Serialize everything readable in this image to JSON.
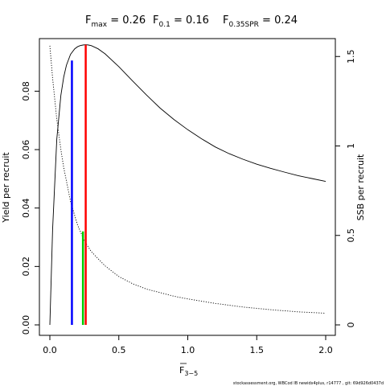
{
  "chart_data": {
    "type": "line",
    "title": {
      "parts": [
        {
          "main": "F",
          "sub": "max",
          "value": " = 0.26"
        },
        {
          "main": "F",
          "sub": "0.1",
          "value": " = 0.16"
        },
        {
          "main": "F",
          "sub": "0.35SPR",
          "value": " = 0.24"
        }
      ]
    },
    "xlabel": {
      "main": "F",
      "sub": "3−5",
      "overline": true
    },
    "ylabel_left": "Yield per recruit",
    "ylabel_right": "SSB per recruit",
    "xlim": [
      0,
      2.0
    ],
    "ylim_left": [
      0,
      0.098
    ],
    "ylim_right": [
      0,
      1.6
    ],
    "x_ticks": [
      {
        "v": 0,
        "label": "0.0"
      },
      {
        "v": 0.5,
        "label": "0.5"
      },
      {
        "v": 1.0,
        "label": "1.0"
      },
      {
        "v": 1.5,
        "label": "1.5"
      },
      {
        "v": 2.0,
        "label": "2.0"
      }
    ],
    "y_ticks_left": [
      {
        "v": 0,
        "label": "0.00"
      },
      {
        "v": 0.02,
        "label": "0.02"
      },
      {
        "v": 0.04,
        "label": "0.04"
      },
      {
        "v": 0.06,
        "label": "0.06"
      },
      {
        "v": 0.08,
        "label": "0.08"
      }
    ],
    "y_ticks_right": [
      {
        "v": 0,
        "label": "0"
      },
      {
        "v": 0.5,
        "label": "0.5"
      },
      {
        "v": 1,
        "label": "1"
      },
      {
        "v": 1.5,
        "label": "1.5"
      }
    ],
    "series": [
      {
        "key": "ypr",
        "axis": "left",
        "style": "solid",
        "color": "#000000",
        "x": [
          0,
          0.02,
          0.05,
          0.08,
          0.1,
          0.12,
          0.15,
          0.18,
          0.2,
          0.22,
          0.24,
          0.26,
          0.28,
          0.3,
          0.35,
          0.4,
          0.5,
          0.6,
          0.7,
          0.8,
          0.9,
          1.0,
          1.1,
          1.2,
          1.3,
          1.4,
          1.5,
          1.6,
          1.7,
          1.8,
          1.9,
          2.0
        ],
        "y": [
          0,
          0.0325,
          0.0635,
          0.0786,
          0.0848,
          0.0889,
          0.0926,
          0.0945,
          0.0952,
          0.0956,
          0.0958,
          0.0959,
          0.0958,
          0.0956,
          0.0945,
          0.0928,
          0.0884,
          0.0835,
          0.0787,
          0.0742,
          0.0703,
          0.0668,
          0.0637,
          0.0609,
          0.0586,
          0.0567,
          0.055,
          0.0536,
          0.0523,
          0.0511,
          0.0501,
          0.0491
        ]
      },
      {
        "key": "spr",
        "axis": "right",
        "style": "dotted",
        "color": "#000000",
        "x": [
          0,
          0.02,
          0.05,
          0.08,
          0.1,
          0.15,
          0.2,
          0.25,
          0.3,
          0.4,
          0.5,
          0.6,
          0.7,
          0.8,
          0.9,
          1.0,
          1.2,
          1.4,
          1.6,
          1.8,
          2.0
        ],
        "y": [
          1.56,
          1.38,
          1.15,
          0.98,
          0.88,
          0.69,
          0.56,
          0.47,
          0.41,
          0.33,
          0.27,
          0.23,
          0.2,
          0.18,
          0.16,
          0.145,
          0.12,
          0.1,
          0.085,
          0.073,
          0.065
        ]
      }
    ],
    "reference_lines": [
      {
        "key": "f01",
        "x": 0.16,
        "y_top": 0.0905,
        "color": "#0000ff"
      },
      {
        "key": "fmax",
        "x": 0.26,
        "y_top": 0.0959,
        "color": "#ff0000"
      },
      {
        "key": "f35spr",
        "x": 0.24,
        "y_top": 0.032,
        "color": "#00cc00"
      }
    ]
  },
  "footer": {
    "credit": "stockassessment.org, WBCod IB newidx4plus, r14777 , git: 69d926d0437d"
  }
}
